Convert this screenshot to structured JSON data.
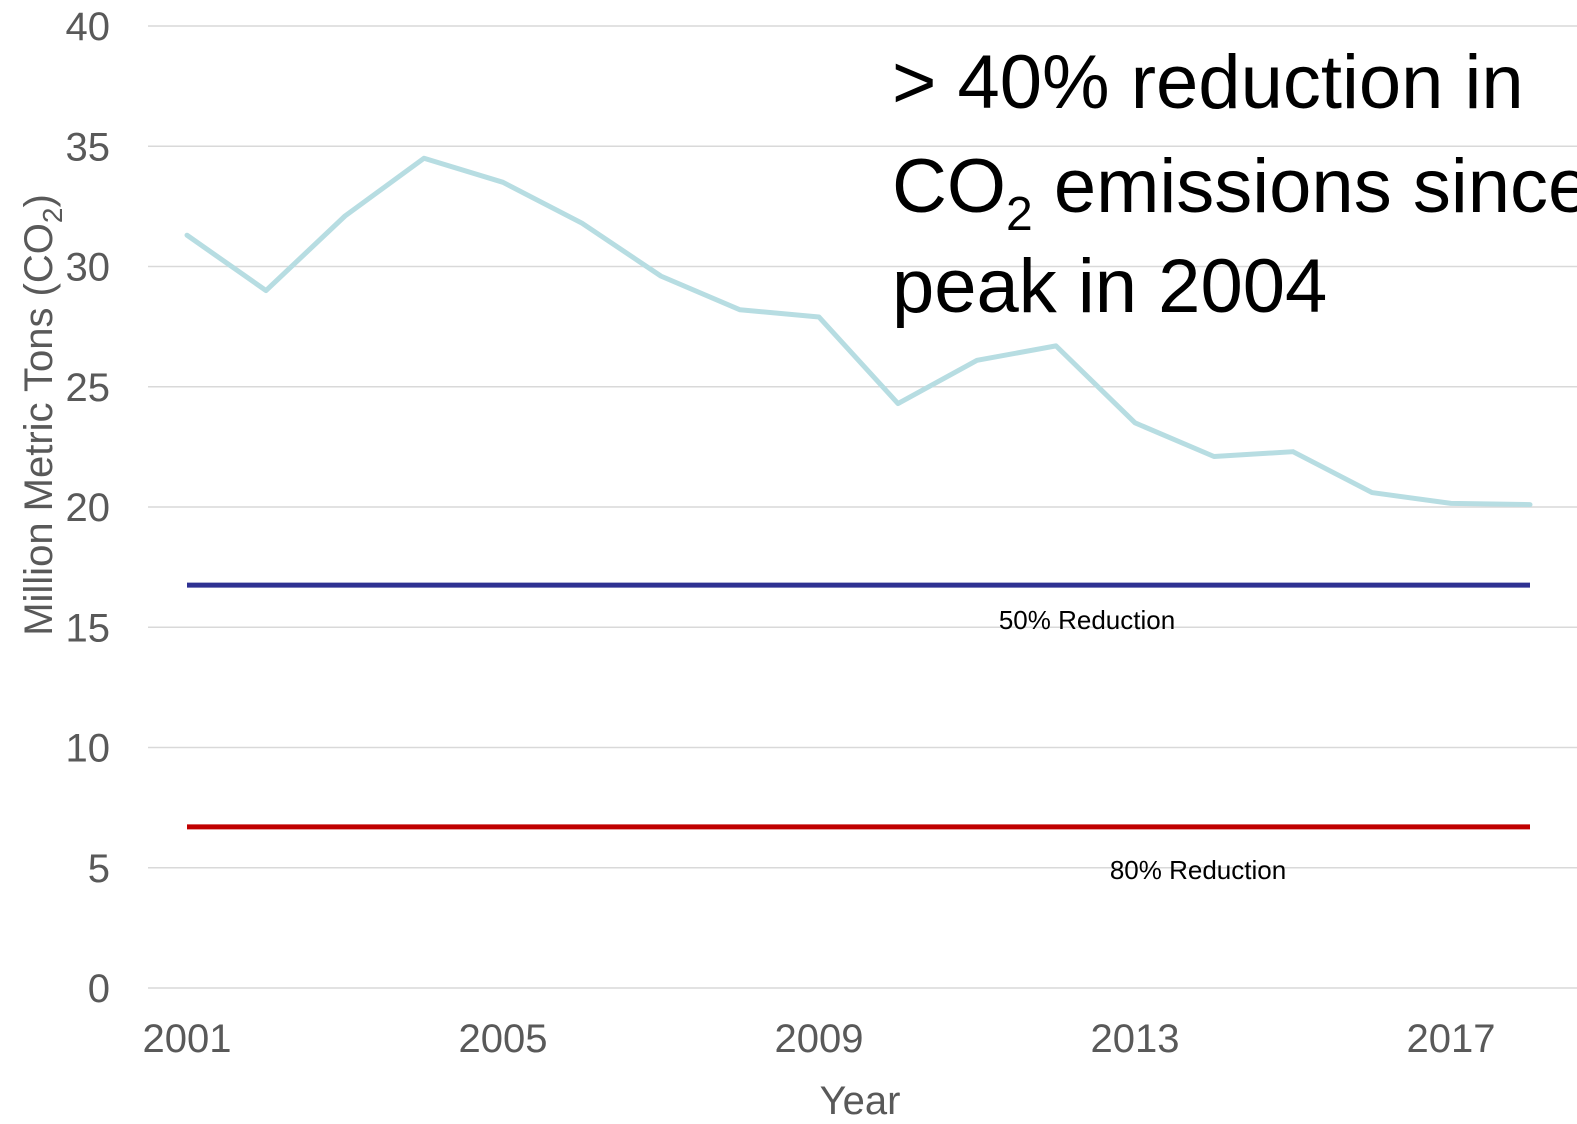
{
  "chart_data": {
    "type": "line",
    "xlabel": "Year",
    "ylabel": "Million Metric Tons (CO",
    "ylabel_sub": "2",
    "ylabel_close": ")",
    "ylim": [
      0,
      40
    ],
    "xlim": [
      2001,
      2018
    ],
    "y_ticks": [
      0,
      5,
      10,
      15,
      20,
      25,
      30,
      35,
      40
    ],
    "x_ticks": [
      2001,
      2005,
      2009,
      2013,
      2017
    ],
    "grid": true,
    "series": [
      {
        "color": "#b7dde2",
        "x": [
          2001,
          2002,
          2003,
          2004,
          2005,
          2006,
          2007,
          2008,
          2009,
          2010,
          2011,
          2012,
          2013,
          2014,
          2015,
          2016,
          2017,
          2018
        ],
        "values": [
          31.3,
          29.0,
          32.1,
          34.5,
          33.5,
          31.8,
          29.6,
          28.2,
          27.9,
          24.3,
          26.1,
          26.7,
          23.5,
          22.1,
          22.3,
          20.6,
          20.15,
          20.1
        ]
      }
    ],
    "reference_lines": [
      {
        "label": "50% Reduction",
        "value": 16.75,
        "color": "#2e3192"
      },
      {
        "label": "80% Reduction",
        "value": 6.7,
        "color": "#c00000"
      }
    ],
    "annotation": {
      "line1": "> 40% reduction in",
      "line2_pre": "CO",
      "line2_sub": "2",
      "line2_post": " emissions since",
      "line3": "peak in 2004"
    }
  }
}
